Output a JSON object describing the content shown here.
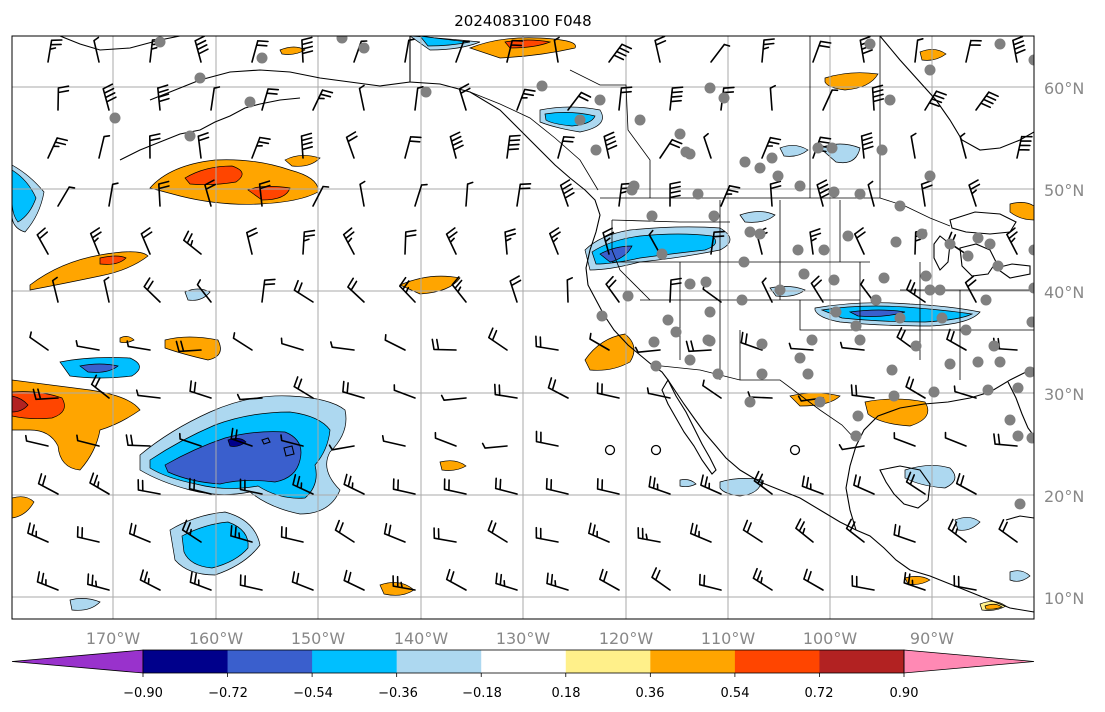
{
  "title": "2024083100 F048",
  "map": {
    "lon_labels": [
      "170°W",
      "160°W",
      "150°W",
      "140°W",
      "130°W",
      "120°W",
      "110°W",
      "100°W",
      "90°W"
    ],
    "lat_labels": [
      "60°N",
      "50°N",
      "40°N",
      "30°N",
      "20°N",
      "10°N"
    ]
  },
  "colorbar": {
    "tick_labels": [
      "−0.90",
      "−0.72",
      "−0.54",
      "−0.36",
      "−0.18",
      "0.18",
      "0.36",
      "0.54",
      "0.72",
      "0.90"
    ],
    "colors": [
      "#9932cc",
      "#00008b",
      "#3a5fcd",
      "#00bfff",
      "#add8f0",
      "#ffffff",
      "#fff08a",
      "#ffa500",
      "#ff4500",
      "#b22222",
      "#ff89b4"
    ],
    "extend": "both"
  },
  "legend_colors": {
    "station": "#808080",
    "barb": "#000000",
    "grid": "#aaaaaa"
  }
}
